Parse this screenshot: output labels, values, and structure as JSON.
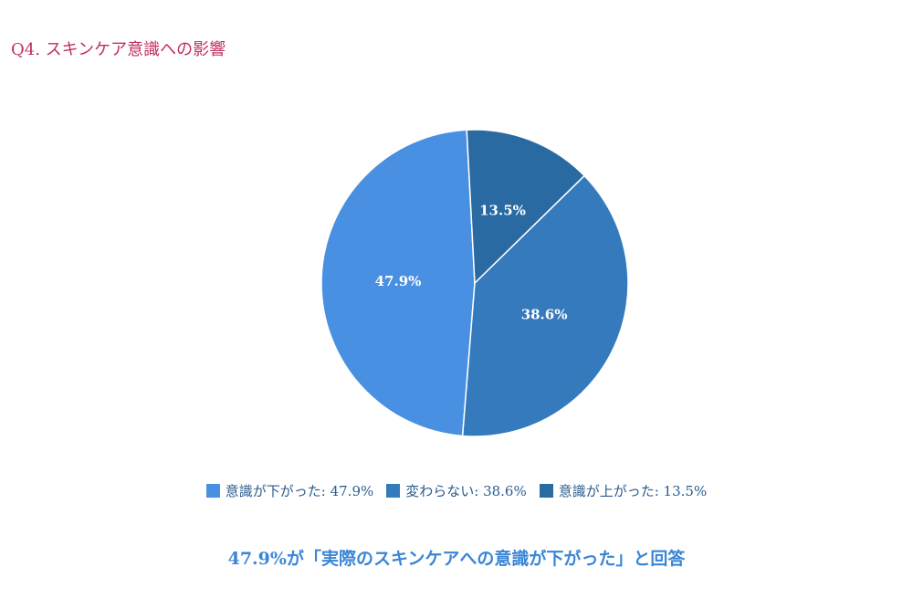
{
  "title": "Q4. スキンケア意識への影響",
  "chart_data": {
    "type": "pie",
    "title": "Q4. スキンケア意識への影響",
    "unit": "%",
    "start_angle_deg": 93,
    "slices": [
      {
        "name": "意識が下がった",
        "value": 47.9,
        "label": "47.9%",
        "legend": "意識が下がった: 47.9%",
        "color": "#4a90e2"
      },
      {
        "name": "変わらない",
        "value": 38.6,
        "label": "38.6%",
        "legend": "変わらない: 38.6%",
        "color": "#357abd"
      },
      {
        "name": "意識が上がった",
        "value": 13.5,
        "label": "13.5%",
        "legend": "意識が上がった: 13.5%",
        "color": "#2a6aa3"
      }
    ],
    "legend_position": "bottom"
  },
  "conclusion": "47.9%が「実際のスキンケアへの意識が下がった」と回答"
}
